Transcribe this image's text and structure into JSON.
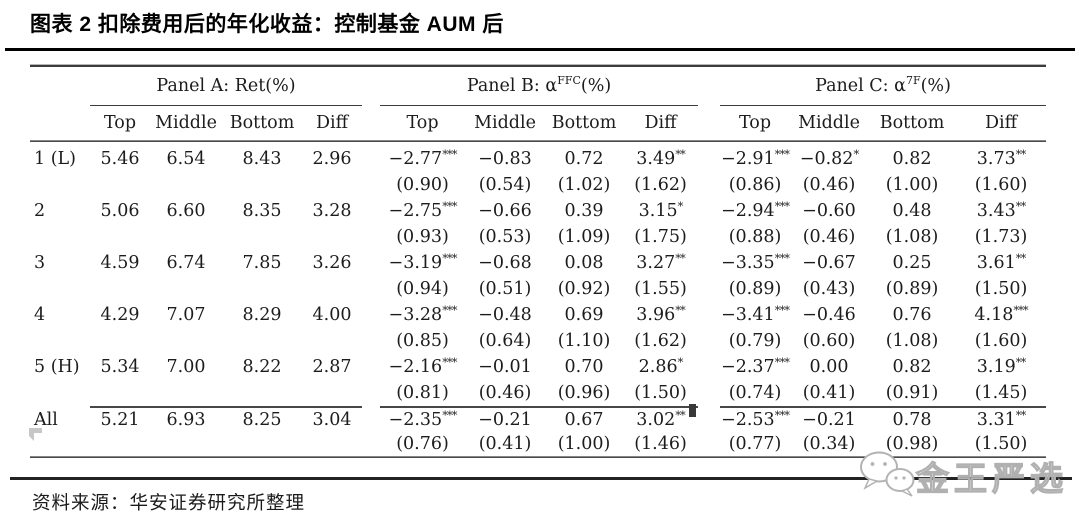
{
  "page": {
    "title": "图表 2 扣除费用后的年化收益：控制基金 AUM 后",
    "source": "资料来源：华安证券研究所整理"
  },
  "watermark": {
    "text": "金王严选",
    "icon": "wechat-chat-bubbles"
  },
  "colors": {
    "text": "#1c1c1c",
    "rule_black": "#000000",
    "rule_gray": "#3c3c3c",
    "watermark_gray": "#b3b3b3"
  },
  "table": {
    "panels": [
      {
        "pre": "Panel A: Ret",
        "sup": "",
        "post": "(%)"
      },
      {
        "pre": "Panel B: α",
        "sup": "FFC",
        "post": "(%)"
      },
      {
        "pre": "Panel C: α",
        "sup": "7F",
        "post": "(%)"
      }
    ],
    "columns": [
      "Top",
      "Middle",
      "Bottom",
      "Diff"
    ],
    "rows": [
      {
        "label": "1 (L)",
        "a": [
          "5.46",
          "6.54",
          "8.43",
          "2.96"
        ],
        "b": [
          "−2.77***",
          "−0.83",
          "0.72",
          "3.49**"
        ],
        "b_se": [
          "(0.90)",
          "(0.54)",
          "(1.02)",
          "(1.62)"
        ],
        "c": [
          "−2.91***",
          "−0.82*",
          "0.82",
          "3.73**"
        ],
        "c_se": [
          "(0.86)",
          "(0.46)",
          "(1.00)",
          "(1.60)"
        ]
      },
      {
        "label": "2",
        "a": [
          "5.06",
          "6.60",
          "8.35",
          "3.28"
        ],
        "b": [
          "−2.75***",
          "−0.66",
          "0.39",
          "3.15*"
        ],
        "b_se": [
          "(0.93)",
          "(0.53)",
          "(1.09)",
          "(1.75)"
        ],
        "c": [
          "−2.94***",
          "−0.60",
          "0.48",
          "3.43**"
        ],
        "c_se": [
          "(0.88)",
          "(0.46)",
          "(1.08)",
          "(1.73)"
        ]
      },
      {
        "label": "3",
        "a": [
          "4.59",
          "6.74",
          "7.85",
          "3.26"
        ],
        "b": [
          "−3.19***",
          "−0.68",
          "0.08",
          "3.27**"
        ],
        "b_se": [
          "(0.94)",
          "(0.51)",
          "(0.92)",
          "(1.55)"
        ],
        "c": [
          "−3.35***",
          "−0.67",
          "0.25",
          "3.61**"
        ],
        "c_se": [
          "(0.89)",
          "(0.43)",
          "(0.89)",
          "(1.50)"
        ]
      },
      {
        "label": "4",
        "a": [
          "4.29",
          "7.07",
          "8.29",
          "4.00"
        ],
        "b": [
          "−3.28***",
          "−0.48",
          "0.69",
          "3.96**"
        ],
        "b_se": [
          "(0.85)",
          "(0.64)",
          "(1.10)",
          "(1.62)"
        ],
        "c": [
          "−3.41***",
          "−0.46",
          "0.76",
          "4.18***"
        ],
        "c_se": [
          "(0.79)",
          "(0.60)",
          "(1.08)",
          "(1.60)"
        ]
      },
      {
        "label": "5 (H)",
        "a": [
          "5.34",
          "7.00",
          "8.22",
          "2.87"
        ],
        "b": [
          "−2.16***",
          "−0.01",
          "0.70",
          "2.86*"
        ],
        "b_se": [
          "(0.81)",
          "(0.46)",
          "(0.96)",
          "(1.50)"
        ],
        "c": [
          "−2.37***",
          "0.00",
          "0.82",
          "3.19**"
        ],
        "c_se": [
          "(0.74)",
          "(0.41)",
          "(0.91)",
          "(1.45)"
        ]
      },
      {
        "label": "All",
        "a": [
          "5.21",
          "6.93",
          "8.25",
          "3.04"
        ],
        "b": [
          "−2.35***",
          "−0.21",
          "0.67",
          "3.02**"
        ],
        "b_se": [
          "(0.76)",
          "(0.41)",
          "(1.00)",
          "(1.46)"
        ],
        "c": [
          "−2.53***",
          "−0.21",
          "0.78",
          "3.31**"
        ],
        "c_se": [
          "(0.77)",
          "(0.34)",
          "(0.98)",
          "(1.50)"
        ]
      }
    ]
  }
}
